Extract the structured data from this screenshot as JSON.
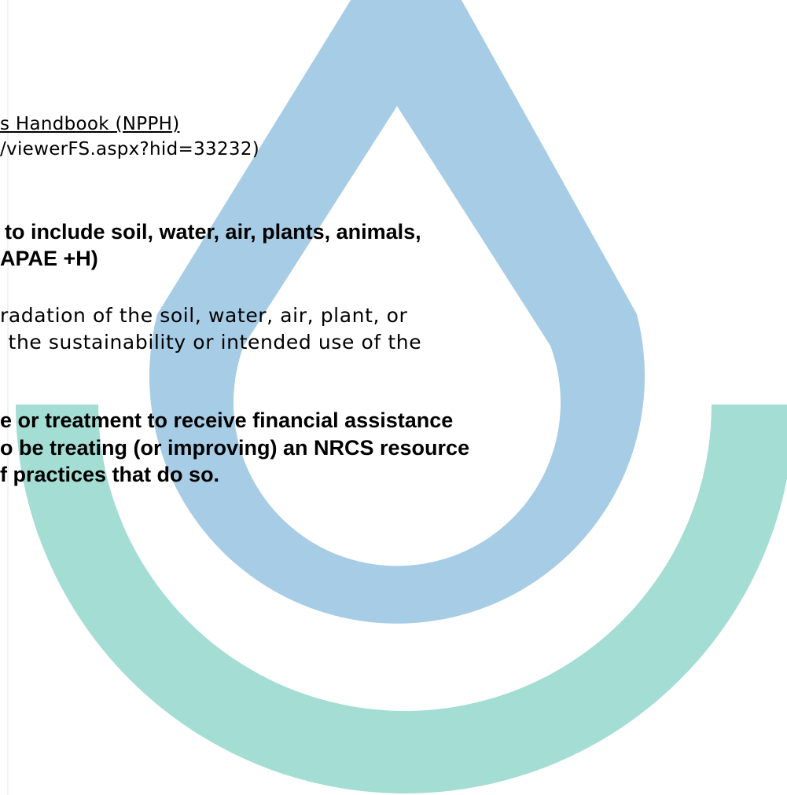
{
  "reference": [
    "s Handbook (NPPH)",
    "/viewerFS.aspx?hid=33232)"
  ],
  "heading_1": [
    "to include soil, water, air, plants, animals,",
    "APAE +H)"
  ],
  "body_1": [
    "radation of the soil, water, air, plant, or",
    " the sustainability or intended use of the"
  ],
  "heading_2": [
    "e or treatment to receive financial assistance",
    "o be treating (or improving) an NRCS resource",
    "f practices that do so."
  ]
}
